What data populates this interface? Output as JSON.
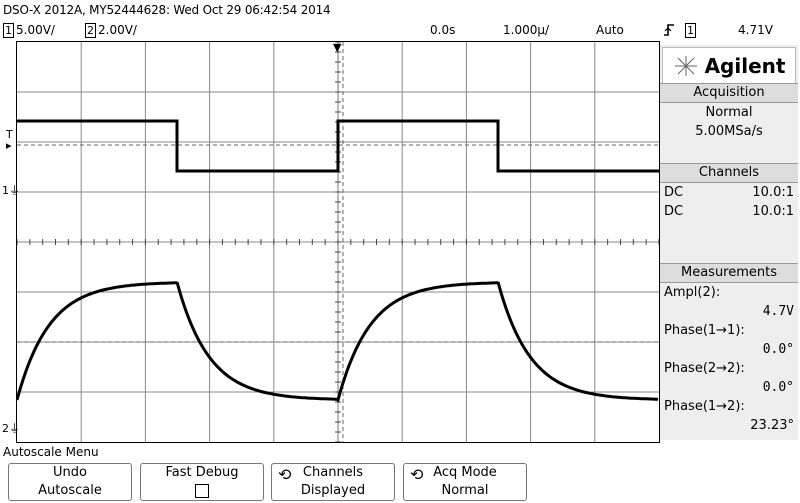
{
  "header": {
    "title": "DSO-X 2012A, MY52444628: Wed Oct 29 06:42:54 2014",
    "ch1_num": "1",
    "ch1_scale": "5.00V/",
    "ch2_num": "2",
    "ch2_scale": "2.00V/",
    "time_offset": "0.0s",
    "time_scale": "1.000µ/",
    "trigger_mode": "Auto",
    "trigger_slope_icon": "rising-edge",
    "trigger_source": "1",
    "trigger_level": "4.71V"
  },
  "screen": {
    "trigger_marker": "T",
    "ch1_marker": "1",
    "ch2_marker": "2"
  },
  "brand": {
    "name": "Agilent",
    "logo_icon": "agilent-spark-logo"
  },
  "acquisition": {
    "heading": "Acquisition",
    "mode": "Normal",
    "rate": "5.00MSa/s"
  },
  "channels": {
    "heading": "Channels",
    "rows": [
      {
        "coupling": "DC",
        "probe": "10.0:1"
      },
      {
        "coupling": "DC",
        "probe": "10.0:1"
      }
    ]
  },
  "measurements": {
    "heading": "Measurements",
    "items": [
      {
        "label": "Ampl(2):",
        "value": "4.7V"
      },
      {
        "label": "Phase(1→1):",
        "value": "0.0°"
      },
      {
        "label": "Phase(2→2):",
        "value": "0.0°"
      },
      {
        "label": "Phase(1→2):",
        "value": "23.23°"
      }
    ]
  },
  "menu": {
    "title": "Autoscale Menu",
    "softkeys": [
      {
        "line1": "Undo",
        "line2": "Autoscale"
      },
      {
        "line1": "Fast Debug",
        "line2": ""
      },
      {
        "line1": "Channels",
        "line2": "Displayed"
      },
      {
        "line1": "Acq Mode",
        "line2": "Normal"
      }
    ]
  }
}
